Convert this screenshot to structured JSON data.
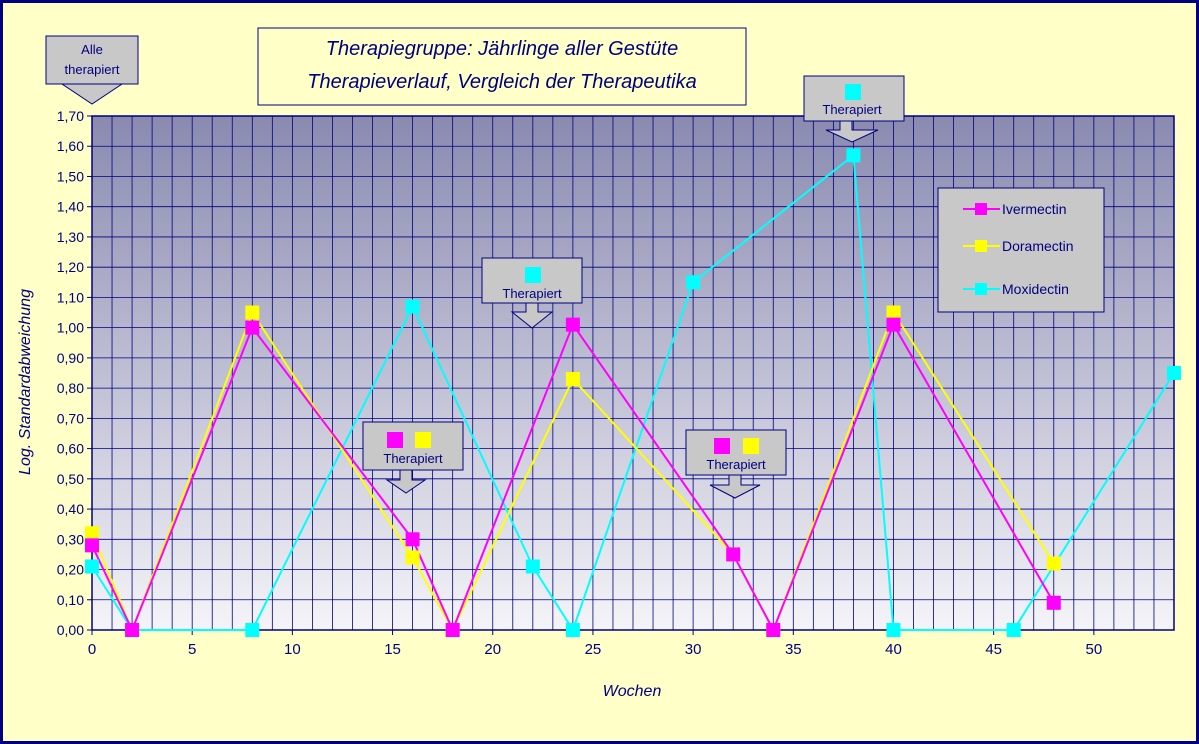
{
  "chart_data": {
    "type": "line",
    "title_line1": "Therapiegruppe:  Jährlinge aller Gestüte",
    "title_line2": "Therapieverlauf, Vergleich der Therapeutika",
    "xlabel": "Wochen",
    "ylabel": "Log. Standardabweichung",
    "xlim": [
      0,
      54
    ],
    "ylim": [
      0,
      1.7
    ],
    "x_ticks": [
      0,
      5,
      10,
      15,
      20,
      25,
      30,
      35,
      40,
      45,
      50
    ],
    "y_ticks": [
      "0,00",
      "0,10",
      "0,20",
      "0,30",
      "0,40",
      "0,50",
      "0,60",
      "0,70",
      "0,80",
      "0,90",
      "1,00",
      "1,10",
      "1,20",
      "1,30",
      "1,40",
      "1,50",
      "1,60",
      "1,70"
    ],
    "grid": true,
    "legend_position": "right",
    "colors": {
      "background": "#ffffc8",
      "plot_top": "#8a8ab0",
      "plot_bottom": "#f4f4f8",
      "grid": "#000080",
      "border": "#000080",
      "callout": "#c8c8c8"
    },
    "series": [
      {
        "name": "Ivermectin",
        "color": "#ff00ff",
        "x": [
          0,
          2,
          8,
          16,
          18,
          24,
          32,
          34,
          40,
          48
        ],
        "y": [
          0.28,
          0,
          1.0,
          0.3,
          0,
          1.01,
          0.25,
          0,
          1.01,
          0.09
        ]
      },
      {
        "name": "Doramectin",
        "color": "#ffff00",
        "x": [
          0,
          2,
          8,
          16,
          18,
          24,
          32,
          34,
          40,
          48
        ],
        "y": [
          0.32,
          0,
          1.05,
          0.24,
          0,
          0.83,
          0.25,
          0,
          1.05,
          0.22
        ]
      },
      {
        "name": "Moxidectin",
        "color": "#00ffff",
        "x": [
          0,
          2,
          8,
          16,
          22,
          24,
          30,
          38,
          40,
          46,
          54
        ],
        "y": [
          0.21,
          0,
          0,
          1.07,
          0.21,
          0,
          1.15,
          1.57,
          0,
          0,
          0.85
        ]
      }
    ],
    "annotations": [
      {
        "text_line1": "Alle",
        "text_line2": "therapiert",
        "markers": []
      },
      {
        "text_line1": "Therapiert",
        "markers": [
          "#ff00ff",
          "#ffff00"
        ]
      },
      {
        "text_line1": "Therapiert",
        "markers": [
          "#00ffff"
        ]
      },
      {
        "text_line1": "Therapiert",
        "markers": [
          "#ff00ff",
          "#ffff00"
        ]
      },
      {
        "text_line1": "Therapiert",
        "markers": [
          "#00ffff"
        ]
      }
    ]
  }
}
